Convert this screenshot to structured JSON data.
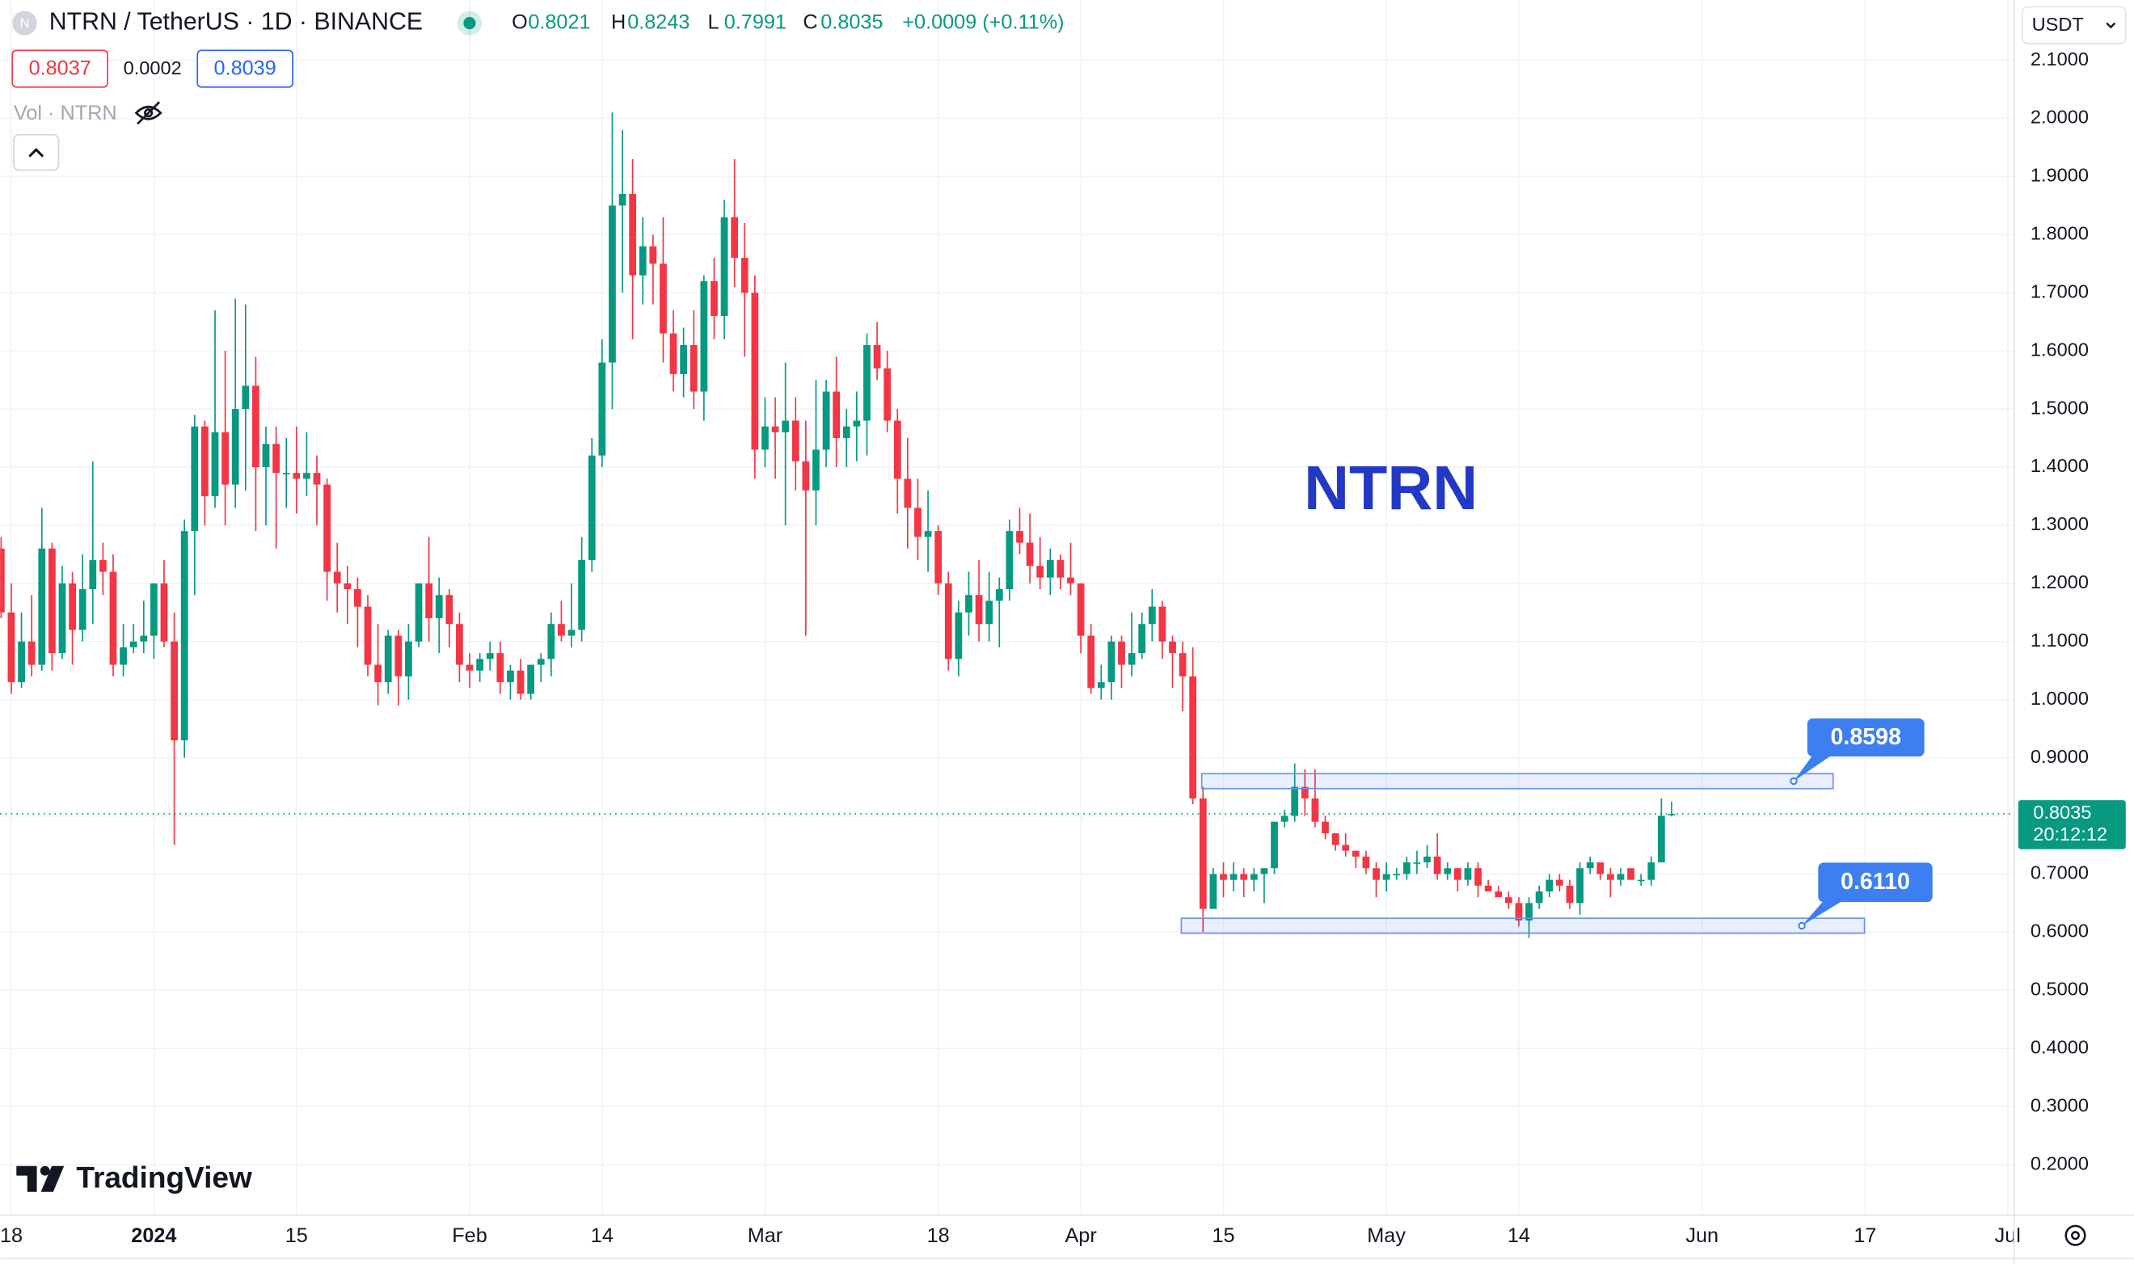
{
  "header": {
    "logo": "N",
    "symbol": "NTRN / TetherUS · 1D · BINANCE",
    "ohlc_keys": [
      "O",
      "H",
      "L",
      "C"
    ],
    "change": "+0.0009 (+0.11%)",
    "bid": "0.8037",
    "spread": "0.0002",
    "ask": "0.8039",
    "volume_label": "Vol · NTRN",
    "currency": "USDT",
    "countdown": "20:12:12",
    "brand": "TradingView"
  },
  "chart_data": {
    "type": "candlestick",
    "title": "NTRN",
    "x": [
      -15,
      -14,
      -13,
      -12,
      -11,
      -10,
      -9,
      -8,
      -7,
      -6,
      -5,
      -4,
      -3,
      -2,
      -1,
      0,
      1,
      2,
      3,
      4,
      5,
      6,
      7,
      8,
      9,
      10,
      11,
      12,
      13,
      14,
      15,
      16,
      17,
      18,
      19,
      20,
      21,
      22,
      23,
      24,
      25,
      26,
      27,
      28,
      29,
      30,
      31,
      32,
      33,
      34,
      35,
      36,
      37,
      38,
      39,
      40,
      41,
      42,
      43,
      44,
      45,
      46,
      47,
      48,
      49,
      50,
      51,
      52,
      53,
      54,
      55,
      56,
      57,
      58,
      59,
      60,
      61,
      62,
      63,
      64,
      65,
      66,
      67,
      68,
      69,
      70,
      71,
      72,
      73,
      74,
      75,
      76,
      77,
      78,
      79,
      80,
      81,
      82,
      83,
      84,
      85,
      86,
      87,
      88,
      89,
      90,
      91,
      92,
      93,
      94,
      95,
      96,
      97,
      98,
      99,
      100,
      101,
      102,
      103,
      104,
      105,
      106,
      107,
      108,
      109,
      110,
      111,
      112,
      113,
      114,
      115,
      116,
      117,
      118,
      119,
      120,
      121,
      122,
      123,
      124,
      125,
      126,
      127,
      128,
      129,
      130,
      131,
      132,
      133,
      134,
      135,
      136,
      137,
      138,
      139,
      140,
      141,
      142,
      143,
      144,
      145,
      146,
      147,
      148,
      149
    ],
    "open": [
      1.26,
      1.15,
      1.03,
      1.1,
      1.06,
      1.26,
      1.08,
      1.2,
      1.12,
      1.19,
      1.24,
      1.22,
      1.06,
      1.09,
      1.1,
      1.11,
      1.2,
      1.1,
      0.93,
      1.29,
      1.47,
      1.35,
      1.46,
      1.37,
      1.5,
      1.54,
      1.4,
      1.44,
      1.39,
      1.39,
      1.38,
      1.39,
      1.37,
      1.22,
      1.2,
      1.19,
      1.16,
      1.06,
      1.03,
      1.11,
      1.04,
      1.1,
      1.2,
      1.14,
      1.18,
      1.13,
      1.06,
      1.05,
      1.07,
      1.08,
      1.03,
      1.05,
      1.01,
      1.06,
      1.07,
      1.13,
      1.11,
      1.12,
      1.24,
      1.42,
      1.58,
      1.85,
      1.87,
      1.73,
      1.78,
      1.75,
      1.63,
      1.56,
      1.61,
      1.53,
      1.72,
      1.66,
      1.83,
      1.76,
      1.7,
      1.43,
      1.47,
      1.46,
      1.48,
      1.41,
      1.36,
      1.43,
      1.53,
      1.45,
      1.47,
      1.48,
      1.61,
      1.57,
      1.48,
      1.38,
      1.33,
      1.28,
      1.29,
      1.2,
      1.07,
      1.15,
      1.18,
      1.13,
      1.17,
      1.19,
      1.29,
      1.27,
      1.23,
      1.21,
      1.24,
      1.21,
      1.2,
      1.11,
      1.02,
      1.03,
      1.1,
      1.06,
      1.08,
      1.13,
      1.16,
      1.1,
      1.08,
      1.04,
      0.83,
      0.64,
      0.7,
      0.69,
      0.7,
      0.69,
      0.7,
      0.71,
      0.79,
      0.8,
      0.85,
      0.83,
      0.79,
      0.77,
      0.75,
      0.74,
      0.73,
      0.71,
      0.69,
      0.7,
      0.7,
      0.72,
      0.72,
      0.73,
      0.7,
      0.71,
      0.69,
      0.71,
      0.68,
      0.67,
      0.66,
      0.65,
      0.62,
      0.65,
      0.67,
      0.69,
      0.68,
      0.65,
      0.71,
      0.72,
      0.7,
      0.69,
      0.71,
      0.69,
      0.69,
      0.72,
      0.8021
    ],
    "high": [
      1.28,
      1.2,
      1.15,
      1.18,
      1.33,
      1.27,
      1.23,
      1.22,
      1.25,
      1.41,
      1.27,
      1.25,
      1.13,
      1.13,
      1.17,
      1.2,
      1.24,
      1.15,
      1.31,
      1.49,
      1.48,
      1.67,
      1.6,
      1.69,
      1.68,
      1.59,
      1.47,
      1.47,
      1.45,
      1.47,
      1.46,
      1.42,
      1.38,
      1.27,
      1.23,
      1.21,
      1.18,
      1.13,
      1.12,
      1.12,
      1.13,
      1.2,
      1.28,
      1.21,
      1.19,
      1.15,
      1.08,
      1.08,
      1.1,
      1.1,
      1.06,
      1.07,
      1.06,
      1.08,
      1.15,
      1.17,
      1.2,
      1.28,
      1.45,
      1.62,
      2.01,
      1.98,
      1.93,
      1.83,
      1.8,
      1.83,
      1.67,
      1.64,
      1.67,
      1.73,
      1.76,
      1.86,
      1.93,
      1.82,
      1.73,
      1.52,
      1.52,
      1.58,
      1.52,
      1.48,
      1.55,
      1.55,
      1.59,
      1.5,
      1.53,
      1.63,
      1.65,
      1.6,
      1.5,
      1.45,
      1.38,
      1.36,
      1.3,
      1.22,
      1.17,
      1.22,
      1.24,
      1.22,
      1.21,
      1.31,
      1.33,
      1.32,
      1.28,
      1.26,
      1.25,
      1.27,
      1.2,
      1.13,
      1.06,
      1.11,
      1.11,
      1.15,
      1.15,
      1.19,
      1.17,
      1.11,
      1.1,
      1.09,
      0.85,
      0.71,
      0.72,
      0.72,
      0.71,
      0.71,
      0.71,
      0.79,
      0.81,
      0.89,
      0.88,
      0.88,
      0.8,
      0.77,
      0.77,
      0.74,
      0.74,
      0.72,
      0.72,
      0.71,
      0.73,
      0.74,
      0.75,
      0.77,
      0.72,
      0.71,
      0.72,
      0.72,
      0.69,
      0.68,
      0.67,
      0.66,
      0.66,
      0.68,
      0.7,
      0.7,
      0.69,
      0.72,
      0.73,
      0.72,
      0.71,
      0.71,
      0.71,
      0.7,
      0.73,
      0.83,
      0.8243
    ],
    "low": [
      1.14,
      1.01,
      1.02,
      1.04,
      1.05,
      1.05,
      1.07,
      1.06,
      1.1,
      1.13,
      1.18,
      1.04,
      1.04,
      1.08,
      1.08,
      1.07,
      1.09,
      0.75,
      0.9,
      1.18,
      1.3,
      1.33,
      1.3,
      1.33,
      1.36,
      1.29,
      1.3,
      1.26,
      1.33,
      1.32,
      1.35,
      1.3,
      1.17,
      1.15,
      1.13,
      1.09,
      1.04,
      0.99,
      1.01,
      0.99,
      1.0,
      1.09,
      1.1,
      1.08,
      1.09,
      1.03,
      1.02,
      1.03,
      1.05,
      1.01,
      1.0,
      1.0,
      1.0,
      1.03,
      1.04,
      1.1,
      1.09,
      1.1,
      1.22,
      1.4,
      1.5,
      1.7,
      1.62,
      1.68,
      1.68,
      1.58,
      1.53,
      1.52,
      1.5,
      1.48,
      1.62,
      1.62,
      1.71,
      1.59,
      1.38,
      1.4,
      1.38,
      1.3,
      1.36,
      1.11,
      1.3,
      1.4,
      1.4,
      1.4,
      1.41,
      1.42,
      1.55,
      1.46,
      1.32,
      1.26,
      1.24,
      1.22,
      1.18,
      1.05,
      1.04,
      1.11,
      1.1,
      1.1,
      1.09,
      1.17,
      1.25,
      1.2,
      1.19,
      1.18,
      1.19,
      1.18,
      1.08,
      1.01,
      1.0,
      1.0,
      1.02,
      1.04,
      1.07,
      1.1,
      1.07,
      1.02,
      0.98,
      0.82,
      0.6,
      0.64,
      0.66,
      0.67,
      0.66,
      0.67,
      0.65,
      0.7,
      0.78,
      0.79,
      0.8,
      0.78,
      0.76,
      0.74,
      0.73,
      0.71,
      0.7,
      0.66,
      0.67,
      0.69,
      0.69,
      0.7,
      0.71,
      0.69,
      0.69,
      0.67,
      0.68,
      0.66,
      0.67,
      0.66,
      0.64,
      0.61,
      0.59,
      0.64,
      0.66,
      0.67,
      0.64,
      0.63,
      0.7,
      0.69,
      0.66,
      0.68,
      0.69,
      0.68,
      0.68,
      0.72,
      0.7991
    ],
    "close": [
      1.15,
      1.03,
      1.1,
      1.06,
      1.26,
      1.08,
      1.2,
      1.12,
      1.19,
      1.24,
      1.22,
      1.06,
      1.09,
      1.1,
      1.11,
      1.2,
      1.1,
      0.93,
      1.29,
      1.47,
      1.35,
      1.46,
      1.37,
      1.5,
      1.54,
      1.4,
      1.44,
      1.39,
      1.39,
      1.38,
      1.39,
      1.37,
      1.22,
      1.2,
      1.19,
      1.16,
      1.06,
      1.03,
      1.11,
      1.04,
      1.1,
      1.2,
      1.14,
      1.18,
      1.13,
      1.06,
      1.05,
      1.07,
      1.08,
      1.03,
      1.05,
      1.01,
      1.06,
      1.07,
      1.13,
      1.11,
      1.12,
      1.24,
      1.42,
      1.58,
      1.85,
      1.87,
      1.73,
      1.78,
      1.75,
      1.63,
      1.56,
      1.61,
      1.53,
      1.72,
      1.66,
      1.83,
      1.76,
      1.7,
      1.43,
      1.47,
      1.46,
      1.48,
      1.41,
      1.36,
      1.43,
      1.53,
      1.45,
      1.47,
      1.48,
      1.61,
      1.57,
      1.48,
      1.38,
      1.33,
      1.28,
      1.29,
      1.2,
      1.07,
      1.15,
      1.18,
      1.13,
      1.17,
      1.19,
      1.29,
      1.27,
      1.23,
      1.21,
      1.24,
      1.21,
      1.2,
      1.11,
      1.02,
      1.03,
      1.1,
      1.06,
      1.08,
      1.13,
      1.16,
      1.1,
      1.08,
      1.04,
      0.83,
      0.64,
      0.7,
      0.69,
      0.7,
      0.69,
      0.7,
      0.71,
      0.79,
      0.8,
      0.85,
      0.83,
      0.79,
      0.77,
      0.75,
      0.74,
      0.73,
      0.71,
      0.69,
      0.7,
      0.7,
      0.72,
      0.72,
      0.73,
      0.7,
      0.71,
      0.69,
      0.71,
      0.68,
      0.67,
      0.66,
      0.65,
      0.62,
      0.65,
      0.67,
      0.69,
      0.68,
      0.65,
      0.71,
      0.72,
      0.7,
      0.69,
      0.7,
      0.69,
      0.69,
      0.72,
      0.8,
      0.8035
    ],
    "up_color": "#089981",
    "down_color": "#f23645",
    "xlim": [
      -15.1,
      182.63
    ],
    "xticks": [
      {
        "value": -14,
        "label": "18"
      },
      {
        "value": 0,
        "label": "2024"
      },
      {
        "value": 14,
        "label": "15"
      },
      {
        "value": 31,
        "label": "Feb"
      },
      {
        "value": 44,
        "label": "14"
      },
      {
        "value": 60,
        "label": "Mar"
      },
      {
        "value": 77,
        "label": "18"
      },
      {
        "value": 91,
        "label": "Apr"
      },
      {
        "value": 105,
        "label": "15"
      },
      {
        "value": 121,
        "label": "May"
      },
      {
        "value": 134,
        "label": "14"
      },
      {
        "value": 152,
        "label": "Jun"
      },
      {
        "value": 168,
        "label": "17"
      },
      {
        "value": 182,
        "label": "Jul"
      }
    ],
    "ylim": [
      0.1133,
      2.2037
    ],
    "yticks": [
      {
        "value": 0.2,
        "label": "0.2000"
      },
      {
        "value": 0.3,
        "label": "0.3000"
      },
      {
        "value": 0.4,
        "label": "0.4000"
      },
      {
        "value": 0.5,
        "label": "0.5000"
      },
      {
        "value": 0.6,
        "label": "0.6000"
      },
      {
        "value": 0.7,
        "label": "0.7000"
      },
      {
        "value": 0.8,
        "label": "0.8000"
      },
      {
        "value": 0.9,
        "label": "0.9000"
      },
      {
        "value": 1.0,
        "label": "1.0000"
      },
      {
        "value": 1.1,
        "label": "1.1000"
      },
      {
        "value": 1.2,
        "label": "1.2000"
      },
      {
        "value": 1.3,
        "label": "1.3000"
      },
      {
        "value": 1.4,
        "label": "1.4000"
      },
      {
        "value": 1.5,
        "label": "1.5000"
      },
      {
        "value": 1.6,
        "label": "1.6000"
      },
      {
        "value": 1.7,
        "label": "1.7000"
      },
      {
        "value": 1.8,
        "label": "1.8000"
      },
      {
        "value": 1.9,
        "label": "1.9000"
      },
      {
        "value": 2.0,
        "label": "2.0000"
      },
      {
        "value": 2.1,
        "label": "2.1000"
      }
    ],
    "grid": true,
    "levels": [
      {
        "value": 0.8598,
        "label": "0.8598"
      },
      {
        "value": 0.611,
        "label": "0.6110"
      }
    ]
  }
}
